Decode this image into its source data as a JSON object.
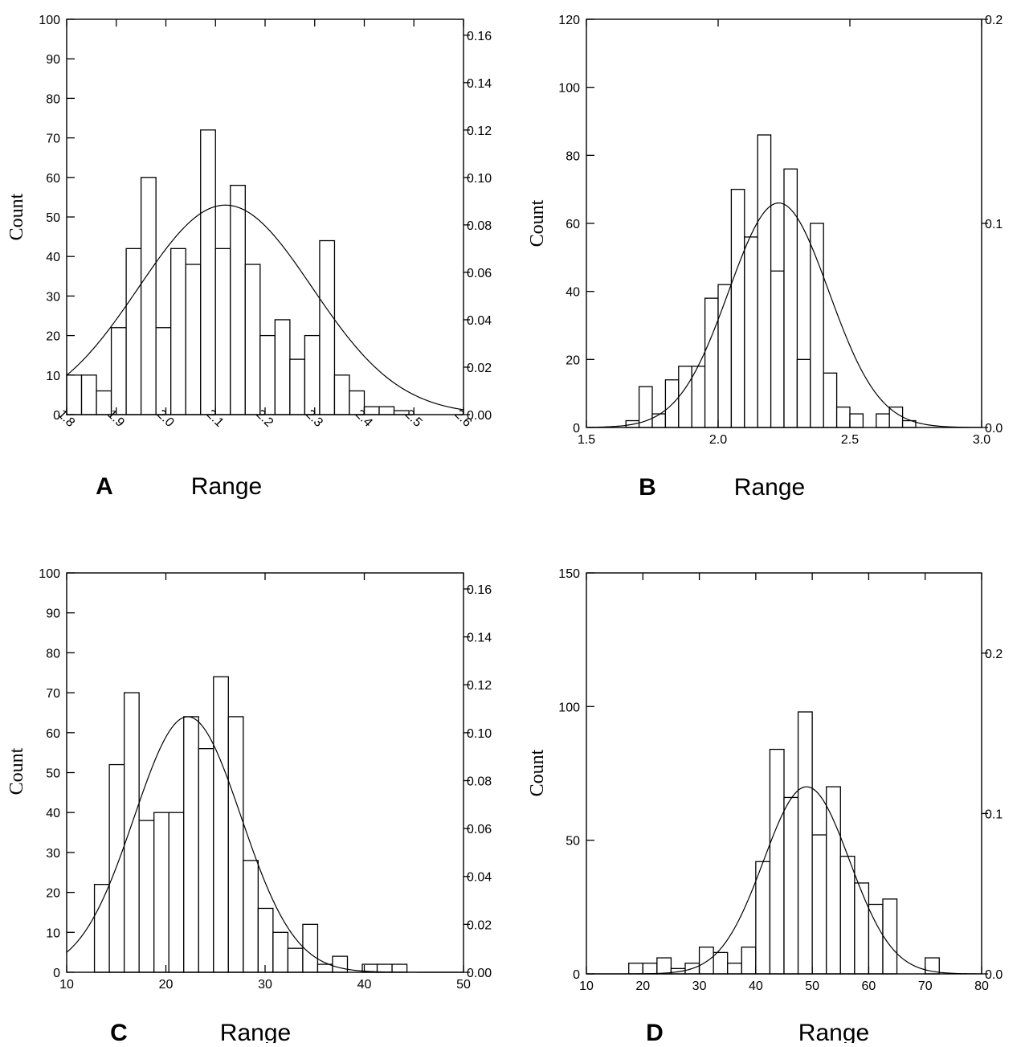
{
  "chart_data": [
    {
      "panel": "A",
      "type": "bar",
      "xlabel": "Range",
      "ylabel": "Count",
      "xlim": [
        1.8,
        2.6
      ],
      "ylim": [
        0,
        100
      ],
      "y2lim": [
        0,
        0.1667
      ],
      "x_ticks": [
        "1.8",
        "1.9",
        "2.0",
        "2.1",
        "2.2",
        "2.3",
        "2.4",
        "2.5",
        "2.6"
      ],
      "x_tick_rotation": 45,
      "y_ticks": [
        "0",
        "10",
        "20",
        "30",
        "40",
        "50",
        "60",
        "70",
        "80",
        "90",
        "100"
      ],
      "y2_ticks": [
        "0.00",
        "0.02",
        "0.04",
        "0.06",
        "0.08",
        "0.10",
        "0.12",
        "0.14",
        "0.16"
      ],
      "bin_start": 1.8,
      "bin_width": 0.03,
      "values": [
        10,
        10,
        6,
        22,
        42,
        60,
        22,
        42,
        38,
        72,
        42,
        58,
        38,
        20,
        24,
        14,
        20,
        44,
        10,
        6,
        2,
        2,
        1
      ],
      "normal_curve": {
        "mean": 2.12,
        "sd": 0.175,
        "peak_count": 53
      }
    },
    {
      "panel": "B",
      "type": "bar",
      "xlabel": "Range",
      "ylabel": "Count",
      "xlim": [
        1.5,
        3.0
      ],
      "ylim": [
        0,
        120
      ],
      "y2lim": [
        0,
        0.2
      ],
      "x_ticks": [
        "1.5",
        "2.0",
        "2.5",
        "3.0"
      ],
      "x_tick_rotation": 0,
      "y_ticks": [
        "0",
        "20",
        "40",
        "60",
        "80",
        "100",
        "120"
      ],
      "y2_ticks": [
        "0.0",
        "0.1",
        "0.2"
      ],
      "bin_start": 1.55,
      "bin_width": 0.05,
      "values": [
        0,
        0,
        2,
        12,
        4,
        14,
        18,
        18,
        38,
        42,
        70,
        56,
        86,
        46,
        76,
        20,
        60,
        16,
        6,
        4,
        0,
        4,
        6,
        2
      ],
      "normal_curve": {
        "mean": 2.23,
        "sd": 0.19,
        "peak_count": 66
      }
    },
    {
      "panel": "C",
      "type": "bar",
      "xlabel": "Range",
      "ylabel": "Count",
      "xlim": [
        10,
        50
      ],
      "ylim": [
        0,
        100
      ],
      "y2lim": [
        0,
        0.1667
      ],
      "x_ticks": [
        "10",
        "20",
        "30",
        "40",
        "50"
      ],
      "x_tick_rotation": 0,
      "y_ticks": [
        "0",
        "10",
        "20",
        "30",
        "40",
        "50",
        "60",
        "70",
        "80",
        "90",
        "100"
      ],
      "y2_ticks": [
        "0.00",
        "0.02",
        "0.04",
        "0.06",
        "0.08",
        "0.10",
        "0.12",
        "0.14",
        "0.16"
      ],
      "bin_start": 12.8,
      "bin_width": 1.5,
      "values": [
        22,
        52,
        70,
        38,
        40,
        40,
        64,
        56,
        74,
        64,
        28,
        16,
        10,
        6,
        12,
        2,
        4,
        0,
        2,
        2,
        2
      ],
      "normal_curve": {
        "mean": 22.2,
        "sd": 5.4,
        "peak_count": 64
      }
    },
    {
      "panel": "D",
      "type": "bar",
      "xlabel": "Range",
      "ylabel": "Count",
      "xlim": [
        10,
        80
      ],
      "ylim": [
        0,
        150
      ],
      "y2lim": [
        0,
        0.25
      ],
      "x_ticks": [
        "10",
        "20",
        "30",
        "40",
        "50",
        "60",
        "70",
        "80"
      ],
      "x_tick_rotation": 0,
      "y_ticks": [
        "0",
        "50",
        "100",
        "150"
      ],
      "y2_ticks": [
        "0.0",
        "0.1",
        "0.2"
      ],
      "bin_start": 17.5,
      "bin_width": 2.5,
      "values": [
        4,
        4,
        6,
        2,
        4,
        10,
        8,
        4,
        10,
        42,
        84,
        66,
        98,
        52,
        70,
        44,
        34,
        26,
        28,
        0,
        0,
        6,
        0
      ],
      "normal_curve": {
        "mean": 49,
        "sd": 7.6,
        "peak_count": 70
      }
    }
  ]
}
